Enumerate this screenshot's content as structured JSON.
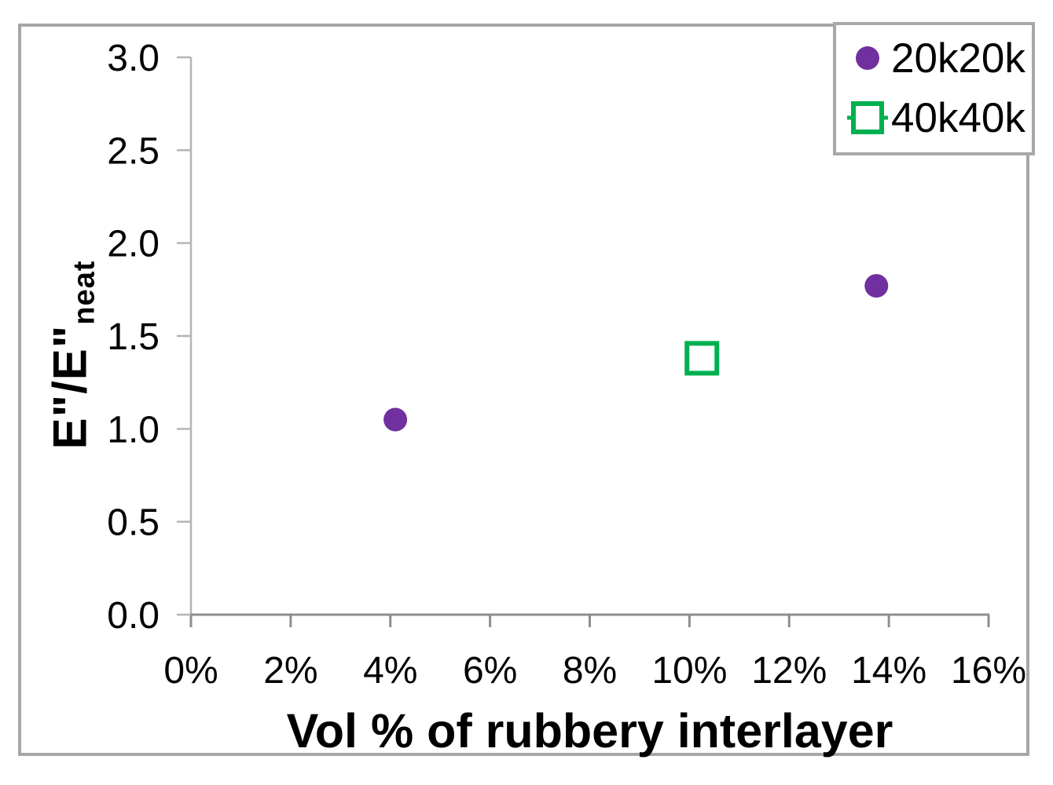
{
  "chart_data": {
    "type": "scatter",
    "title": "",
    "xlabel": "Vol % of rubbery interlayer",
    "ylabel": "E\"/E\"neat",
    "ylabel_main": "E\"/E\"",
    "ylabel_sub": "neat",
    "xlim": [
      0,
      16
    ],
    "ylim": [
      0.0,
      3.0
    ],
    "grid": false,
    "legend_position": "top-right",
    "x_tick_unit": "percent",
    "x_ticks": [
      {
        "value": 0,
        "label": "0%"
      },
      {
        "value": 2,
        "label": "2%"
      },
      {
        "value": 4,
        "label": "4%"
      },
      {
        "value": 6,
        "label": "6%"
      },
      {
        "value": 8,
        "label": "8%"
      },
      {
        "value": 10,
        "label": "10%"
      },
      {
        "value": 12,
        "label": "12%"
      },
      {
        "value": 14,
        "label": "14%"
      },
      {
        "value": 16,
        "label": "16%"
      }
    ],
    "y_ticks": [
      {
        "value": 0.0,
        "label": "0.0"
      },
      {
        "value": 0.5,
        "label": "0.5"
      },
      {
        "value": 1.0,
        "label": "1.0"
      },
      {
        "value": 1.5,
        "label": "1.5"
      },
      {
        "value": 2.0,
        "label": "2.0"
      },
      {
        "value": 2.5,
        "label": "2.5"
      },
      {
        "value": 3.0,
        "label": "3.0"
      }
    ],
    "series": [
      {
        "name": "20k20k",
        "marker": "filled-circle",
        "color": "#7030a0",
        "points": [
          {
            "x": 4.1,
            "y": 1.05
          },
          {
            "x": 13.75,
            "y": 1.77
          }
        ]
      },
      {
        "name": "40k40k",
        "marker": "open-square",
        "color": "#00b050",
        "points": [
          {
            "x": 10.25,
            "y": 1.38
          }
        ]
      }
    ],
    "colors": {
      "frame_border": "#a6a6a6",
      "axis_x": "#8e8e8e",
      "axis_y": "#b4b4b4",
      "text": "#000000",
      "background": "#ffffff"
    }
  }
}
